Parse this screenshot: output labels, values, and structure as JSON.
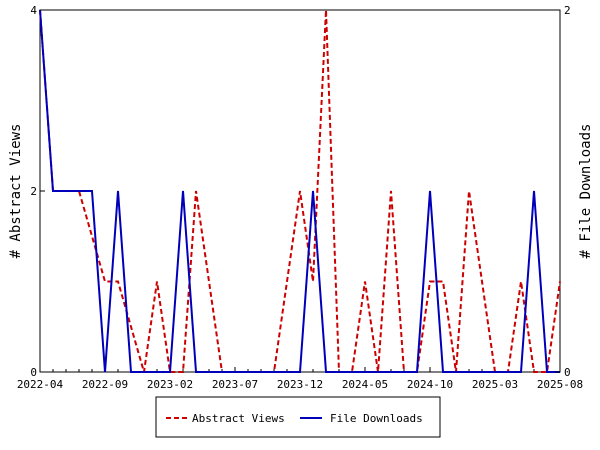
{
  "chart_data": {
    "type": "line",
    "x_dates": [
      "2022-04",
      "2022-05",
      "2022-06",
      "2022-07",
      "2022-08",
      "2022-09",
      "2022-10",
      "2022-11",
      "2022-12",
      "2023-01",
      "2023-02",
      "2023-03",
      "2023-04",
      "2023-05",
      "2023-06",
      "2023-07",
      "2023-08",
      "2023-09",
      "2023-10",
      "2023-11",
      "2023-12",
      "2024-01",
      "2024-02",
      "2024-03",
      "2024-04",
      "2024-05",
      "2024-06",
      "2024-07",
      "2024-08",
      "2024-09",
      "2024-10",
      "2024-11",
      "2024-12",
      "2025-01",
      "2025-02",
      "2025-03",
      "2025-04",
      "2025-05",
      "2025-06",
      "2025-07",
      "2025-08"
    ],
    "x_tick_labels": [
      "2022-04",
      "2022-09",
      "2023-02",
      "2023-07",
      "2023-12",
      "2024-05",
      "2024-10",
      "2025-03",
      "2025-08"
    ],
    "series": [
      {
        "name": "Abstract Views",
        "axis": "left",
        "color": "#cc0000",
        "style": "dashed",
        "values": [
          4,
          2,
          2,
          2,
          1.5,
          1,
          1,
          0.5,
          0,
          1,
          0,
          0,
          2,
          1,
          0,
          0,
          0,
          0,
          0,
          1,
          2,
          1,
          4,
          0,
          0,
          1,
          0,
          2,
          0,
          0,
          1,
          1,
          0,
          2,
          1,
          0,
          0,
          1,
          0,
          0,
          1
        ]
      },
      {
        "name": "File Downloads",
        "axis": "right",
        "color": "#0000bb",
        "style": "solid",
        "values": [
          2,
          1,
          1,
          1,
          1,
          0,
          1,
          0,
          0,
          0,
          0,
          1,
          0,
          0,
          0,
          0,
          0,
          0,
          0,
          0,
          0,
          1,
          0,
          0,
          0,
          0,
          0,
          0,
          0,
          0,
          1,
          0,
          0,
          0,
          0,
          0,
          0,
          0,
          1,
          0,
          0
        ]
      }
    ],
    "y_left": {
      "label": "# Abstract Views",
      "ylim": [
        0,
        4
      ],
      "ticks": [
        "0",
        "2",
        "4"
      ]
    },
    "y_right": {
      "label": "# File Downloads",
      "ylim": [
        0,
        2
      ],
      "ticks": [
        "0",
        "2"
      ]
    },
    "legend_position": "bottom-center",
    "grid": false
  }
}
